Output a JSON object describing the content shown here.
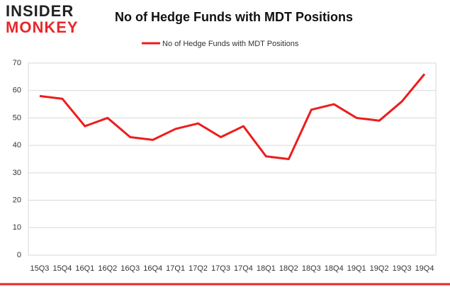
{
  "logo": {
    "line1": "INSIDER",
    "line2": "MONKEY"
  },
  "chart_data": {
    "type": "line",
    "title": "No of Hedge Funds with MDT Positions",
    "categories": [
      "15Q3",
      "15Q4",
      "16Q1",
      "16Q2",
      "16Q3",
      "16Q4",
      "17Q1",
      "17Q2",
      "17Q3",
      "17Q4",
      "18Q1",
      "18Q2",
      "18Q3",
      "18Q4",
      "19Q1",
      "19Q2",
      "19Q3",
      "19Q4"
    ],
    "series": [
      {
        "name": "No of Hedge Funds with MDT Positions",
        "color": "#ee1c1c",
        "values": [
          58,
          57,
          47,
          50,
          43,
          42,
          46,
          48,
          43,
          47,
          36,
          35,
          53,
          55,
          50,
          49,
          56,
          66
        ]
      }
    ],
    "ylim": [
      0,
      70
    ],
    "yticks": [
      0,
      10,
      20,
      30,
      40,
      50,
      60,
      70
    ],
    "grid": true,
    "legend": "top"
  }
}
